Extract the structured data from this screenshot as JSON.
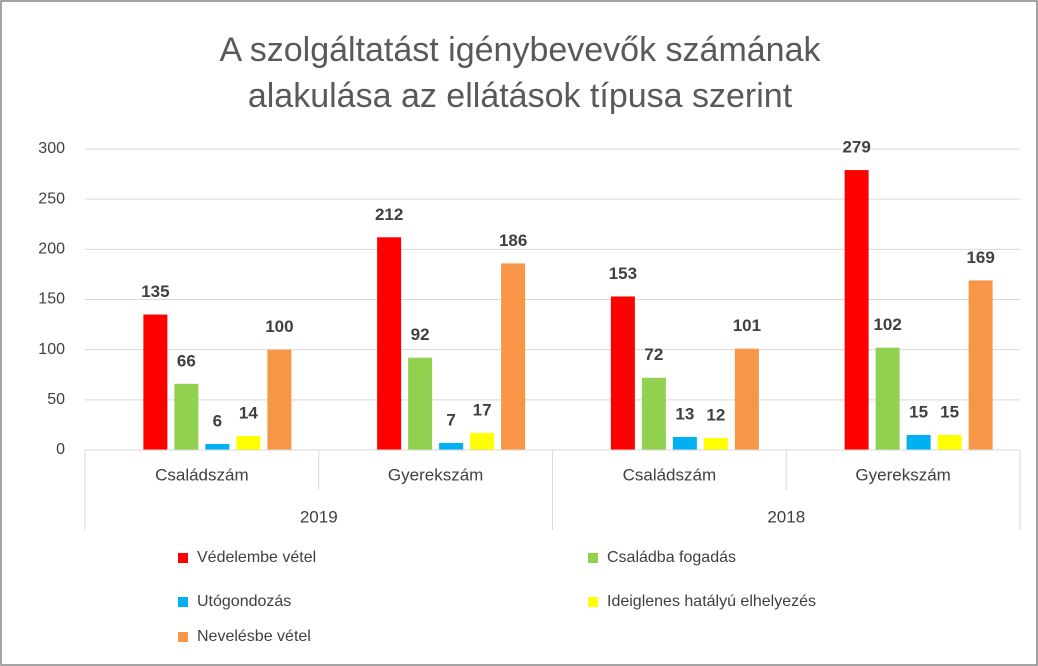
{
  "chart_data": {
    "type": "bar",
    "title": [
      "A szolgáltatást igénybevevők számának",
      "alakulása az ellátások típusa szerint"
    ],
    "groups": [
      {
        "label": "2019",
        "categories": [
          "Családszám",
          "Gyerekszám"
        ]
      },
      {
        "label": "2018",
        "categories": [
          "Családszám",
          "Gyerekszám"
        ]
      }
    ],
    "series": [
      {
        "name": "Védelembe vétel",
        "color": "#ff0000",
        "values": [
          135,
          212,
          153,
          279
        ]
      },
      {
        "name": "Családba fogadás",
        "color": "#92d050",
        "values": [
          66,
          92,
          72,
          102
        ]
      },
      {
        "name": "Utógondozás",
        "color": "#00b0f0",
        "values": [
          6,
          7,
          13,
          15
        ]
      },
      {
        "name": "Ideiglenes hatályú elhelyezés",
        "color": "#ffff00",
        "values": [
          14,
          17,
          12,
          15
        ]
      },
      {
        "name": "Nevelésbe vétel",
        "color": "#f79646",
        "values": [
          100,
          186,
          101,
          169
        ]
      }
    ],
    "ylim": [
      0,
      300
    ],
    "yticks": [
      0,
      50,
      100,
      150,
      200,
      250,
      300
    ],
    "grid": true
  }
}
